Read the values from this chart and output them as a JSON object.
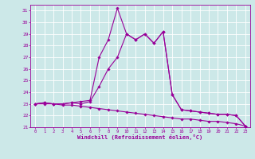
{
  "line1_x": [
    0,
    1,
    2,
    3,
    4,
    5,
    6,
    7,
    8,
    9,
    10,
    11,
    12,
    13,
    14,
    15,
    16,
    17,
    18,
    19,
    20,
    21,
    22,
    23
  ],
  "line1_y": [
    23.0,
    23.1,
    23.0,
    23.0,
    23.1,
    23.2,
    23.3,
    27.0,
    28.5,
    31.2,
    29.0,
    28.5,
    29.0,
    28.2,
    29.2,
    23.8,
    22.5,
    22.4,
    22.3,
    22.2,
    22.1,
    22.1,
    22.0,
    21.1
  ],
  "line2_x": [
    0,
    1,
    2,
    3,
    4,
    5,
    6,
    7,
    8,
    9,
    10,
    11,
    12,
    13,
    14,
    15,
    16,
    17,
    18,
    19,
    20,
    21,
    22,
    23
  ],
  "line2_y": [
    23.0,
    23.1,
    23.0,
    23.0,
    23.1,
    23.0,
    23.2,
    24.5,
    26.0,
    27.0,
    29.0,
    28.5,
    29.0,
    28.2,
    29.2,
    23.8,
    22.5,
    22.4,
    22.3,
    22.2,
    22.1,
    22.1,
    22.0,
    21.1
  ],
  "line3_x": [
    0,
    1,
    2,
    3,
    4,
    5,
    6,
    7,
    8,
    9,
    10,
    11,
    12,
    13,
    14,
    15,
    16,
    17,
    18,
    19,
    20,
    21,
    22,
    23
  ],
  "line3_y": [
    23.0,
    23.0,
    23.0,
    22.9,
    22.9,
    22.8,
    22.7,
    22.6,
    22.5,
    22.4,
    22.3,
    22.2,
    22.1,
    22.0,
    21.9,
    21.8,
    21.7,
    21.7,
    21.6,
    21.5,
    21.5,
    21.4,
    21.3,
    21.1
  ],
  "color": "#990099",
  "bgcolor": "#cce8e8",
  "gridcolor": "#ffffff",
  "xlabel": "Windchill (Refroidissement éolien,°C)",
  "ylim": [
    21,
    31.5
  ],
  "xlim": [
    -0.5,
    23.5
  ],
  "yticks": [
    21,
    22,
    23,
    24,
    25,
    26,
    27,
    28,
    29,
    30,
    31
  ],
  "xticks": [
    0,
    1,
    2,
    3,
    4,
    5,
    6,
    7,
    8,
    9,
    10,
    11,
    12,
    13,
    14,
    15,
    16,
    17,
    18,
    19,
    20,
    21,
    22,
    23
  ]
}
